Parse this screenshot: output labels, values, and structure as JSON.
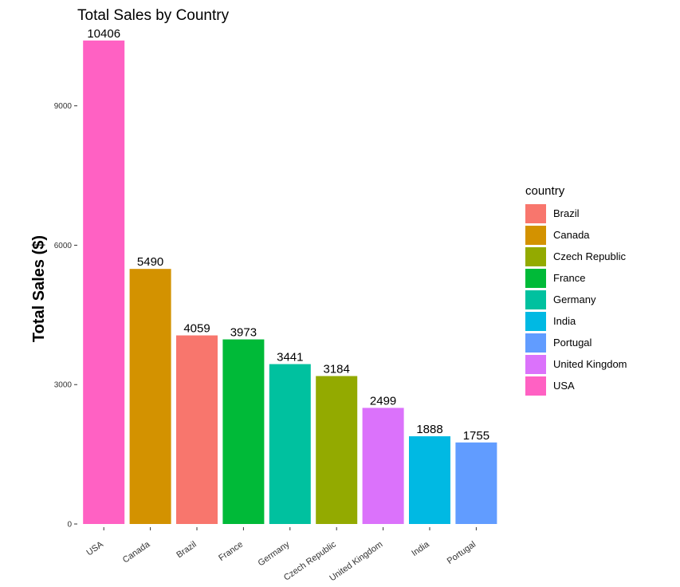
{
  "chart_data": {
    "type": "bar",
    "title": "Total Sales by Country",
    "xlabel": "",
    "ylabel": "Total Sales ($)",
    "categories": [
      "USA",
      "Canada",
      "Brazil",
      "France",
      "Germany",
      "Czech Republic",
      "United Kingdom",
      "India",
      "Portugal"
    ],
    "values": [
      10406,
      5490,
      4059,
      3973,
      3441,
      3184,
      2499,
      1888,
      1755
    ],
    "ylim": [
      0,
      10900
    ],
    "yticks": [
      0,
      3000,
      6000,
      9000
    ],
    "grid": false,
    "legend": {
      "title": "country",
      "position": "right",
      "entries": [
        {
          "label": "Brazil",
          "color": "#F8766D"
        },
        {
          "label": "Canada",
          "color": "#D39200"
        },
        {
          "label": "Czech Republic",
          "color": "#93AA00"
        },
        {
          "label": "France",
          "color": "#00BA38"
        },
        {
          "label": "Germany",
          "color": "#00C19F"
        },
        {
          "label": "India",
          "color": "#00B9E3"
        },
        {
          "label": "Portugal",
          "color": "#619CFF"
        },
        {
          "label": "United Kingdom",
          "color": "#DB72FB"
        },
        {
          "label": "USA",
          "color": "#FF61C3"
        }
      ]
    }
  }
}
